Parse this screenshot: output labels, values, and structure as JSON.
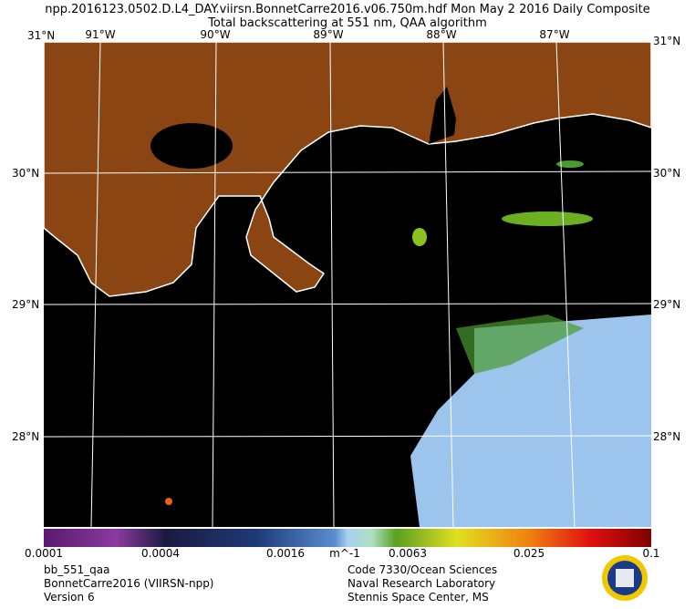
{
  "header": {
    "title": "npp.2016123.0502.D.L4_DAY.viirsn.BonnetCarre2016.v06.750m.hdf    Mon May  2 2016 Daily Composite",
    "subtitle": "Total backscattering at 551 nm, QAA algorithm"
  },
  "map": {
    "latitudes": [
      "31°N",
      "30°N",
      "29°N",
      "28°N"
    ],
    "longitudes": [
      "91°W",
      "90°W",
      "89°W",
      "88°W",
      "87°W"
    ]
  },
  "colorbar": {
    "labels": [
      "0.0001",
      "0.0004",
      "0.0016",
      "0.0063",
      "0.025",
      "0.1"
    ],
    "unit": "m^-1"
  },
  "footer": {
    "left": [
      "bb_551_qaa",
      "BonnetCarre2016 (VIIRSN-npp)",
      "Version 6"
    ],
    "right": [
      "Code 7330/Ocean Sciences",
      "Naval Research Laboratory",
      "Stennis Space Center, MS"
    ]
  }
}
